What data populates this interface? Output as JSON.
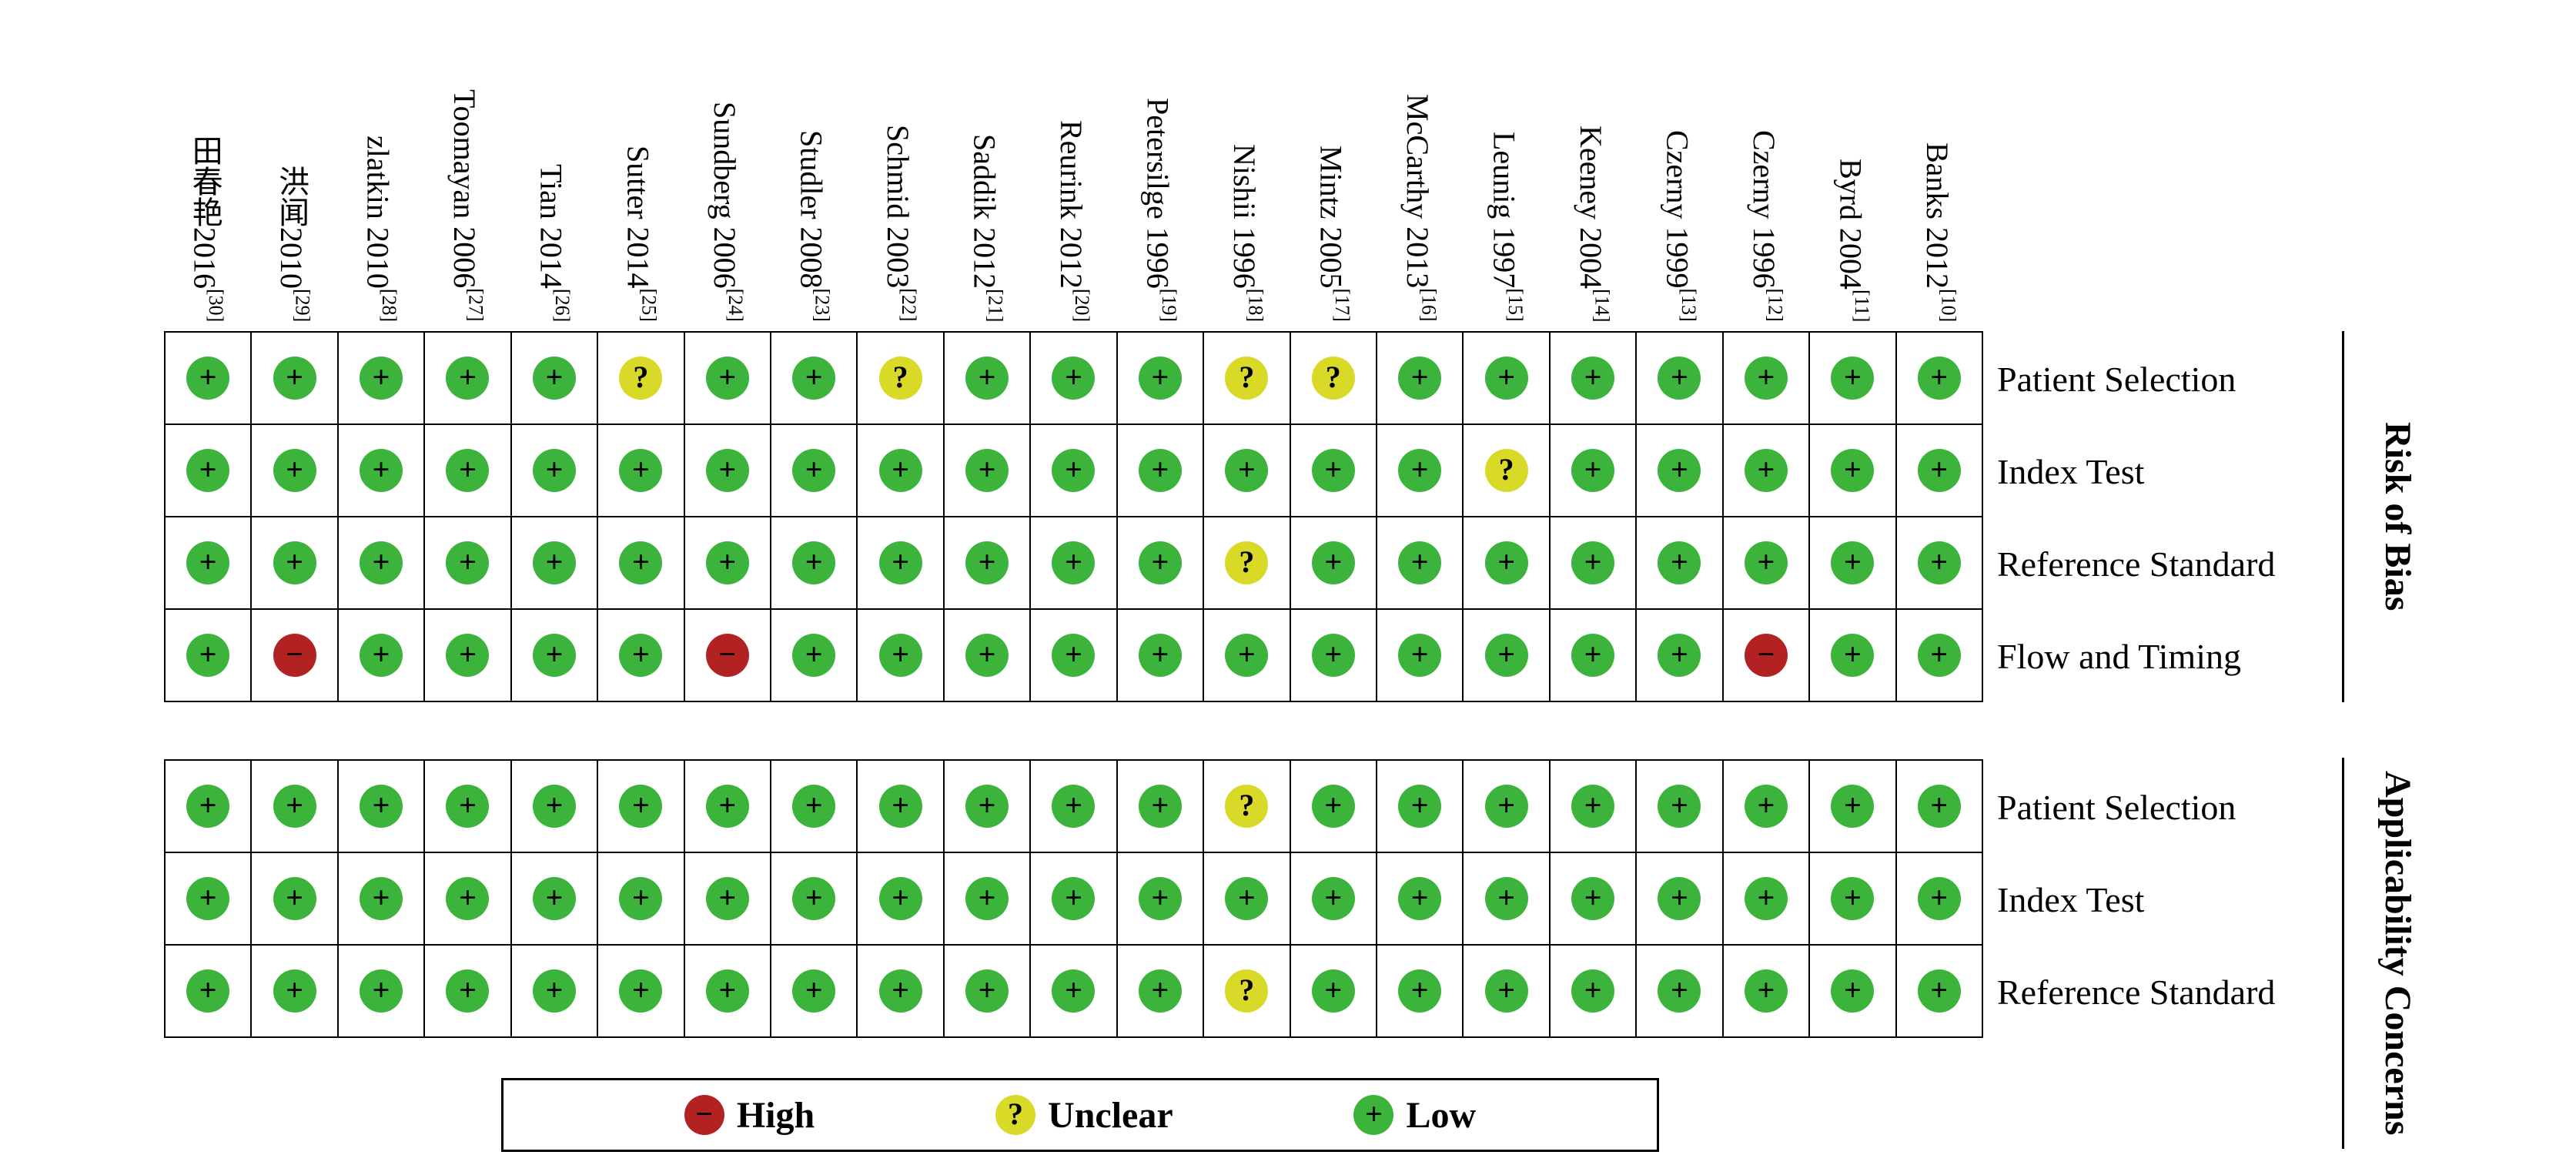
{
  "chart_data": {
    "type": "table",
    "studies": [
      {
        "name": "田春艳2016",
        "ref": "[30]"
      },
      {
        "name": "洪闻2010",
        "ref": "[29]"
      },
      {
        "name": "zlatkin 2010",
        "ref": "[28]"
      },
      {
        "name": "Toomayan 2006",
        "ref": "[27]"
      },
      {
        "name": "Tian 2014",
        "ref": "[26]"
      },
      {
        "name": "Sutter 2014",
        "ref": "[25]"
      },
      {
        "name": "Sundberg 2006",
        "ref": "[24]"
      },
      {
        "name": "Studler 2008",
        "ref": "[23]"
      },
      {
        "name": "Schmid 2003",
        "ref": "[22]"
      },
      {
        "name": "Saddik 2012",
        "ref": "[21]"
      },
      {
        "name": "Reurink 2012",
        "ref": "[20]"
      },
      {
        "name": "Petersilge 1996",
        "ref": "[19]"
      },
      {
        "name": "Nishii 1996",
        "ref": "[18]"
      },
      {
        "name": "Mintz 2005",
        "ref": "[17]"
      },
      {
        "name": "McCarthy 2013",
        "ref": "[16]"
      },
      {
        "name": "Leunig 1997",
        "ref": "[15]"
      },
      {
        "name": "Keeney 2004",
        "ref": "[14]"
      },
      {
        "name": "Czerny 1999",
        "ref": "[13]"
      },
      {
        "name": "Czerny 1996",
        "ref": "[12]"
      },
      {
        "name": "Byrd 2004",
        "ref": "[11]"
      },
      {
        "name": "Banks 2012",
        "ref": "[10]"
      }
    ],
    "sections": [
      {
        "title": "Risk of Bias",
        "rows": [
          {
            "label": "Patient Selection",
            "values": [
              "low",
              "low",
              "low",
              "low",
              "low",
              "unclear",
              "low",
              "low",
              "unclear",
              "low",
              "low",
              "low",
              "unclear",
              "unclear",
              "low",
              "low",
              "low",
              "low",
              "low",
              "low",
              "low"
            ]
          },
          {
            "label": "Index Test",
            "values": [
              "low",
              "low",
              "low",
              "low",
              "low",
              "low",
              "low",
              "low",
              "low",
              "low",
              "low",
              "low",
              "low",
              "low",
              "low",
              "unclear",
              "low",
              "low",
              "low",
              "low",
              "low"
            ]
          },
          {
            "label": "Reference Standard",
            "values": [
              "low",
              "low",
              "low",
              "low",
              "low",
              "low",
              "low",
              "low",
              "low",
              "low",
              "low",
              "low",
              "unclear",
              "low",
              "low",
              "low",
              "low",
              "low",
              "low",
              "low",
              "low"
            ]
          },
          {
            "label": "Flow and Timing",
            "values": [
              "low",
              "high",
              "low",
              "low",
              "low",
              "low",
              "high",
              "low",
              "low",
              "low",
              "low",
              "low",
              "low",
              "low",
              "low",
              "low",
              "low",
              "low",
              "high",
              "low",
              "low"
            ]
          }
        ]
      },
      {
        "title": "Applicability Concerns",
        "rows": [
          {
            "label": "Patient Selection",
            "values": [
              "low",
              "low",
              "low",
              "low",
              "low",
              "low",
              "low",
              "low",
              "low",
              "low",
              "low",
              "low",
              "unclear",
              "low",
              "low",
              "low",
              "low",
              "low",
              "low",
              "low",
              "low"
            ]
          },
          {
            "label": "Index Test",
            "values": [
              "low",
              "low",
              "low",
              "low",
              "low",
              "low",
              "low",
              "low",
              "low",
              "low",
              "low",
              "low",
              "low",
              "low",
              "low",
              "low",
              "low",
              "low",
              "low",
              "low",
              "low"
            ]
          },
          {
            "label": "Reference Standard",
            "values": [
              "low",
              "low",
              "low",
              "low",
              "low",
              "low",
              "low",
              "low",
              "low",
              "low",
              "low",
              "low",
              "unclear",
              "low",
              "low",
              "low",
              "low",
              "low",
              "low",
              "low",
              "low"
            ]
          }
        ]
      }
    ],
    "marks": {
      "low": {
        "symbol": "+",
        "color": "#3cb43c"
      },
      "unclear": {
        "symbol": "?",
        "color": "#d9d928"
      },
      "high": {
        "symbol": "−",
        "color": "#b22222"
      }
    },
    "legend": [
      {
        "key": "high",
        "label": "High"
      },
      {
        "key": "unclear",
        "label": "Unclear"
      },
      {
        "key": "low",
        "label": "Low"
      }
    ]
  }
}
